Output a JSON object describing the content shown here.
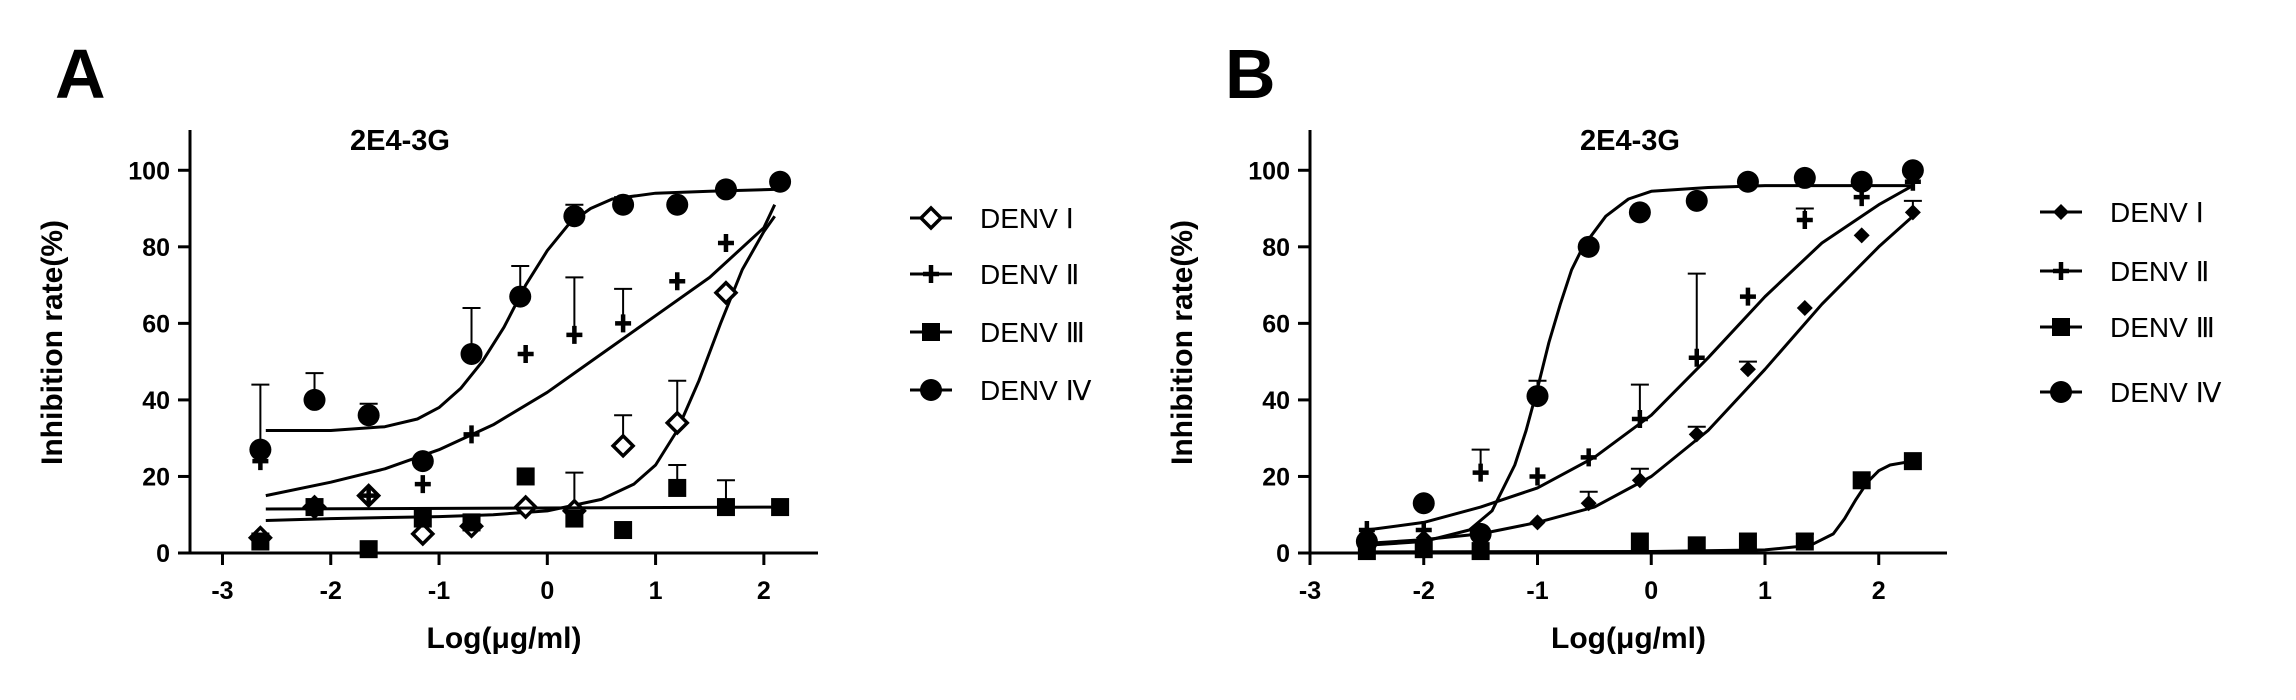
{
  "chart_data": [
    {
      "panel_letter": "A",
      "type": "scatter",
      "title": "2E4-3G",
      "xlabel": "Log(μg/ml)",
      "ylabel": "Inhibition rate(%)",
      "xlim": [
        -3.3,
        2.5
      ],
      "ylim": [
        0,
        110
      ],
      "x_ticks": [
        -3,
        -2,
        -1,
        0,
        1,
        2
      ],
      "y_ticks": [
        0,
        20,
        40,
        60,
        80,
        100
      ],
      "legend_position": "right",
      "series": [
        {
          "name": "DENV Ⅰ",
          "marker": "diamond-open",
          "x": [
            -2.65,
            -2.15,
            -1.65,
            -1.15,
            -0.7,
            -0.2,
            0.25,
            0.7,
            1.2,
            1.65
          ],
          "y": [
            4,
            12,
            15,
            5,
            7,
            12,
            11,
            28,
            34,
            68
          ],
          "error": [
            0,
            0,
            0,
            0,
            0,
            0,
            10,
            8,
            11,
            0
          ],
          "fit_x": [
            -2.6,
            -2.0,
            -1.0,
            -0.5,
            0.0,
            0.5,
            0.8,
            1.0,
            1.2,
            1.4,
            1.6,
            1.8,
            2.0,
            2.1
          ],
          "fit_y": [
            8.5,
            9,
            9.5,
            10,
            11,
            14,
            18,
            23,
            32,
            45,
            60,
            74,
            84,
            88
          ]
        },
        {
          "name": "DENV Ⅱ",
          "marker": "plus",
          "x": [
            -2.65,
            -2.15,
            -1.65,
            -1.15,
            -0.7,
            -0.2,
            0.25,
            0.7,
            1.2,
            1.65
          ],
          "y": [
            24,
            12,
            15,
            18,
            31,
            52,
            57,
            60,
            71,
            81
          ],
          "error": [
            0,
            0,
            0,
            0,
            0,
            0,
            15,
            9,
            0,
            0
          ],
          "fit_x": [
            -2.6,
            -2.0,
            -1.5,
            -1.0,
            -0.5,
            0.0,
            0.5,
            1.0,
            1.5,
            2.0,
            2.1
          ],
          "fit_y": [
            15,
            18.5,
            22,
            27,
            33.5,
            42,
            52,
            62,
            72,
            85,
            91
          ]
        },
        {
          "name": "DENV Ⅲ",
          "marker": "square",
          "x": [
            -2.65,
            -2.15,
            -1.65,
            -1.15,
            -0.7,
            -0.2,
            0.25,
            0.7,
            1.2,
            1.65,
            2.15
          ],
          "y": [
            3,
            12,
            1,
            9,
            8,
            20,
            9,
            6,
            17,
            12,
            12
          ],
          "error": [
            0,
            0,
            0,
            0,
            0,
            0,
            0,
            0,
            6,
            7,
            0
          ],
          "fit_x": [
            -2.6,
            2.1
          ],
          "fit_y": [
            11.5,
            12
          ]
        },
        {
          "name": "DENV Ⅳ",
          "marker": "circle",
          "x": [
            -2.65,
            -2.15,
            -1.65,
            -1.15,
            -0.7,
            -0.25,
            0.25,
            0.7,
            1.2,
            1.65,
            2.15
          ],
          "y": [
            27,
            40,
            36,
            24,
            52,
            67,
            88,
            91,
            91,
            95,
            97
          ],
          "error": [
            17,
            7,
            3,
            0,
            12,
            8,
            3,
            2,
            0,
            0,
            0
          ],
          "fit_x": [
            -2.6,
            -2.0,
            -1.5,
            -1.2,
            -1.0,
            -0.8,
            -0.6,
            -0.4,
            -0.2,
            0.0,
            0.2,
            0.4,
            0.6,
            1.0,
            1.5,
            2.1
          ],
          "fit_y": [
            32,
            32,
            33,
            35,
            38,
            43,
            50,
            59,
            70,
            79,
            86,
            90,
            92.5,
            94,
            94.5,
            95
          ]
        }
      ]
    },
    {
      "panel_letter": "B",
      "type": "scatter",
      "title": "2E4-3G",
      "xlabel": "Log(μg/ml)",
      "ylabel": "Inhibition rate(%)",
      "xlim": [
        -3.0,
        2.6
      ],
      "ylim": [
        0,
        110
      ],
      "x_ticks": [
        -3,
        -2,
        -1,
        0,
        1,
        2
      ],
      "y_ticks": [
        0,
        20,
        40,
        60,
        80,
        100
      ],
      "legend_position": "right",
      "series": [
        {
          "name": "DENV Ⅰ",
          "marker": "diamond-filled",
          "x": [
            -2.5,
            -2.0,
            -1.5,
            -1.0,
            -0.55,
            -0.1,
            0.4,
            0.85,
            1.35,
            1.85,
            2.3
          ],
          "y": [
            5,
            4,
            5,
            8,
            13,
            19,
            31,
            48,
            64,
            83,
            89
          ],
          "error": [
            0,
            0,
            0,
            0,
            3,
            3,
            2,
            2,
            0,
            0,
            3
          ],
          "fit_x": [
            -2.5,
            -2.0,
            -1.5,
            -1.0,
            -0.5,
            0.0,
            0.5,
            1.0,
            1.5,
            2.0,
            2.3
          ],
          "fit_y": [
            2.5,
            3.5,
            5,
            8,
            12,
            20,
            32,
            48,
            65,
            80,
            88
          ]
        },
        {
          "name": "DENV Ⅱ",
          "marker": "plus",
          "x": [
            -2.5,
            -2.0,
            -1.5,
            -1.0,
            -0.55,
            -0.1,
            0.4,
            0.85,
            1.35,
            1.85,
            2.3
          ],
          "y": [
            6,
            6,
            21,
            20,
            25,
            35,
            51,
            67,
            87,
            93,
            97
          ],
          "error": [
            0,
            0,
            6,
            0,
            0,
            9,
            22,
            0,
            3,
            0,
            0
          ],
          "fit_x": [
            -2.5,
            -2.0,
            -1.5,
            -1.0,
            -0.5,
            0.0,
            0.5,
            1.0,
            1.5,
            2.0,
            2.3
          ],
          "fit_y": [
            6,
            8,
            12,
            17,
            25,
            36,
            51,
            67,
            81,
            91,
            96
          ]
        },
        {
          "name": "DENV Ⅲ",
          "marker": "square",
          "x": [
            -2.5,
            -2.0,
            -1.5,
            -0.1,
            0.4,
            0.85,
            1.35,
            1.85,
            2.3
          ],
          "y": [
            0.5,
            1,
            0.5,
            3,
            2,
            3,
            3,
            19,
            24
          ],
          "error": [
            0,
            0,
            0,
            0,
            0,
            0,
            2,
            0,
            0
          ],
          "fit_x": [
            -2.5,
            0.0,
            1.0,
            1.4,
            1.6,
            1.7,
            1.8,
            1.9,
            2.0,
            2.1,
            2.3
          ],
          "fit_y": [
            0.3,
            0.4,
            0.8,
            2,
            5,
            9,
            14,
            18.5,
            21.5,
            23,
            24
          ]
        },
        {
          "name": "DENV Ⅳ",
          "marker": "circle",
          "x": [
            -2.5,
            -2.0,
            -1.5,
            -1.0,
            -0.55,
            -0.1,
            0.4,
            0.85,
            1.35,
            1.85,
            2.3
          ],
          "y": [
            3,
            13,
            5,
            41,
            80,
            89,
            92,
            97,
            98,
            97,
            100
          ],
          "error": [
            0,
            0,
            0,
            4,
            0,
            0,
            0,
            0,
            0,
            0,
            0
          ],
          "fit_x": [
            -2.5,
            -2.0,
            -1.6,
            -1.4,
            -1.2,
            -1.1,
            -1.0,
            -0.9,
            -0.8,
            -0.7,
            -0.6,
            -0.4,
            -0.2,
            0.0,
            0.5,
            1.0,
            2.3
          ],
          "fit_y": [
            2,
            3,
            6,
            11,
            23,
            32,
            43,
            55,
            65,
            74,
            80,
            88,
            92.5,
            94.5,
            95.5,
            96,
            96
          ]
        }
      ]
    }
  ]
}
